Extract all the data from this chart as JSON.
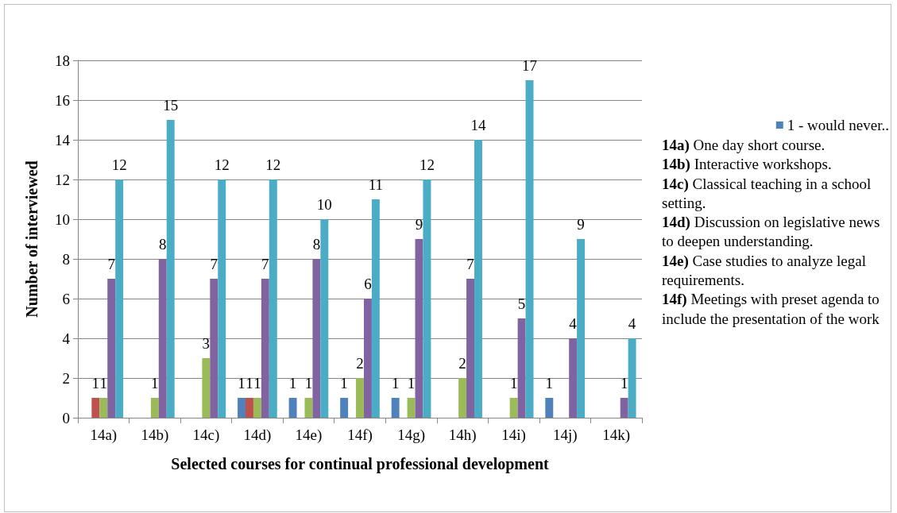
{
  "chart_data": {
    "type": "bar",
    "xlabel": "Selected courses for continual professional development",
    "ylabel": "Number of interviewed",
    "categories": [
      "14a)",
      "14b)",
      "14c)",
      "14d)",
      "14e)",
      "14f)",
      "14g)",
      "14h)",
      "14i)",
      "14j)",
      "14k)"
    ],
    "series": [
      {
        "name": "1 - would never..",
        "color": "#4f81bd",
        "values": [
          null,
          null,
          null,
          1,
          1,
          1,
          1,
          null,
          null,
          1,
          null
        ]
      },
      {
        "color": "#c0504d",
        "values": [
          1,
          null,
          null,
          1,
          null,
          null,
          null,
          null,
          null,
          null,
          null
        ]
      },
      {
        "color": "#9bbb59",
        "values": [
          1,
          1,
          3,
          1,
          1,
          2,
          1,
          2,
          1,
          null,
          null
        ]
      },
      {
        "color": "#8064a2",
        "values": [
          7,
          8,
          7,
          7,
          8,
          6,
          9,
          7,
          5,
          4,
          1
        ]
      },
      {
        "color": "#4bacc6",
        "values": [
          12,
          15,
          12,
          12,
          10,
          11,
          12,
          14,
          17,
          9,
          4
        ]
      }
    ],
    "ylim": [
      0,
      18
    ],
    "yticks": [
      0,
      2,
      4,
      6,
      8,
      10,
      12,
      14,
      16,
      18
    ],
    "grid": "y",
    "legend": "right",
    "data_labels": true,
    "annotations": [
      "14a) One day short course.",
      "14b) Interactive workshops.",
      "14c) Classical teaching in a school setting.",
      "14d) Discussion on legislative news to deepen understanding.",
      "14e) Case studies to analyze legal requirements.",
      "14f) Meetings with preset agenda to include the presentation of the work"
    ]
  }
}
